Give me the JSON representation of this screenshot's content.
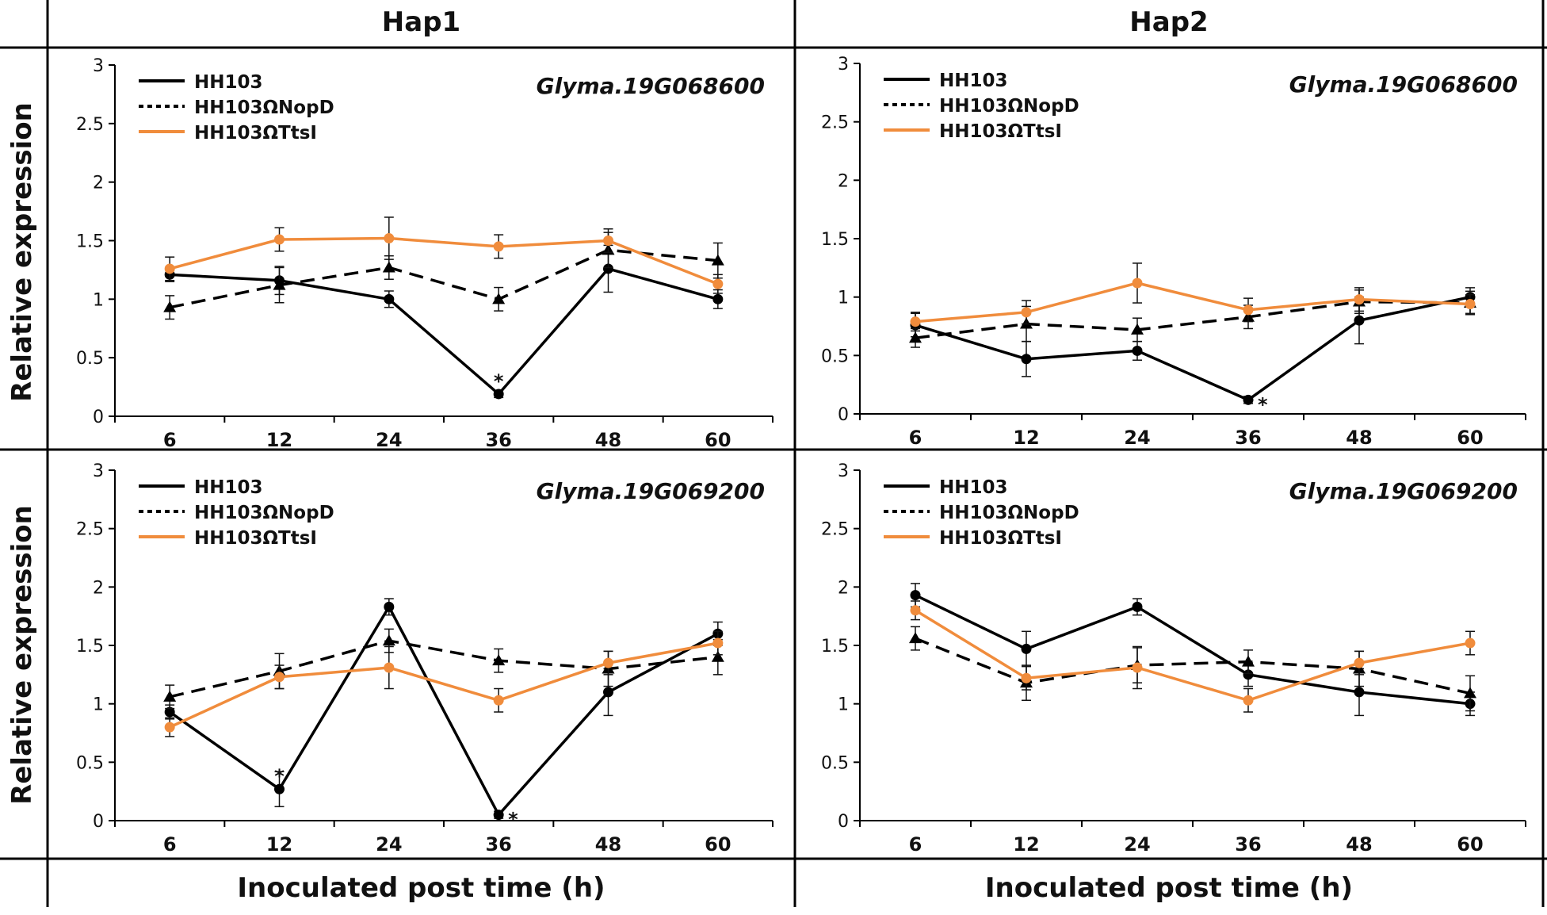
{
  "headers": {
    "left": "Hap1",
    "right": "Hap2"
  },
  "y_axis_label": "Relative expression",
  "x_axis_label": "Inoculated post time (h)",
  "colors": {
    "hh103": "#000000",
    "nopd": "#000000",
    "ttsi": "#f08c3c"
  },
  "chart_data": [
    {
      "type": "line",
      "panel": "Hap1 top",
      "title": "Glyma.19G068600",
      "categories": [
        "6",
        "12",
        "24",
        "36",
        "48",
        "60"
      ],
      "ylim": [
        0,
        3
      ],
      "yticks": [
        "0",
        "0.5",
        "1",
        "1.5",
        "2",
        "2.5",
        "3"
      ],
      "series": [
        {
          "name": "HH103",
          "values": [
            1.21,
            1.16,
            1.0,
            0.19,
            1.26,
            1.0
          ],
          "errors": [
            0.06,
            0.12,
            0.07,
            0.03,
            0.2,
            0.08
          ],
          "style": "solid",
          "marker": "circle"
        },
        {
          "name": "HH103ΩNopD",
          "values": [
            0.93,
            1.12,
            1.27,
            1.0,
            1.42,
            1.33
          ],
          "errors": [
            0.1,
            0.15,
            0.1,
            0.1,
            0.15,
            0.15
          ],
          "style": "dashed",
          "marker": "triangle"
        },
        {
          "name": "HH103ΩTtsI",
          "values": [
            1.26,
            1.51,
            1.52,
            1.45,
            1.5,
            1.13
          ],
          "errors": [
            0.1,
            0.1,
            0.18,
            0.1,
            0.1,
            0.08
          ],
          "style": "solid",
          "marker": "circle"
        }
      ],
      "annotations": [
        {
          "category": "36",
          "series": "HH103",
          "text": "*"
        }
      ]
    },
    {
      "type": "line",
      "panel": "Hap2 top",
      "title": "Glyma.19G068600",
      "categories": [
        "6",
        "12",
        "24",
        "36",
        "48",
        "60"
      ],
      "ylim": [
        0,
        3
      ],
      "yticks": [
        "0",
        "0.5",
        "1",
        "1.5",
        "2",
        "2.5",
        "3"
      ],
      "series": [
        {
          "name": "HH103",
          "values": [
            0.76,
            0.47,
            0.54,
            0.12,
            0.8,
            1.0
          ],
          "errors": [
            0.1,
            0.15,
            0.08,
            0.03,
            0.2,
            0.08
          ],
          "style": "solid",
          "marker": "circle"
        },
        {
          "name": "HH103ΩNopD",
          "values": [
            0.65,
            0.77,
            0.72,
            0.83,
            0.96,
            0.95
          ],
          "errors": [
            0.08,
            0.15,
            0.1,
            0.1,
            0.1,
            0.1
          ],
          "style": "dashed",
          "marker": "triangle"
        },
        {
          "name": "HH103ΩTtsI",
          "values": [
            0.79,
            0.87,
            1.12,
            0.89,
            0.98,
            0.94
          ],
          "errors": [
            0.08,
            0.1,
            0.17,
            0.1,
            0.1,
            0.08
          ],
          "style": "solid",
          "marker": "circle"
        }
      ],
      "annotations": [
        {
          "category": "36",
          "series": "HH103",
          "text": "*"
        }
      ]
    },
    {
      "type": "line",
      "panel": "Hap1 bottom",
      "title": "Glyma.19G069200",
      "categories": [
        "6",
        "12",
        "24",
        "36",
        "48",
        "60"
      ],
      "ylim": [
        0,
        3
      ],
      "yticks": [
        "0",
        "0.5",
        "1",
        "1.5",
        "2",
        "2.5",
        "3"
      ],
      "series": [
        {
          "name": "HH103",
          "values": [
            0.93,
            0.27,
            1.83,
            0.05,
            1.1,
            1.6
          ],
          "errors": [
            0.06,
            0.15,
            0.07,
            0.03,
            0.2,
            0.1
          ],
          "style": "solid",
          "marker": "circle"
        },
        {
          "name": "HH103ΩNopD",
          "values": [
            1.06,
            1.28,
            1.54,
            1.37,
            1.3,
            1.4
          ],
          "errors": [
            0.1,
            0.15,
            0.1,
            0.1,
            0.15,
            0.15
          ],
          "style": "dashed",
          "marker": "triangle"
        },
        {
          "name": "HH103ΩTtsI",
          "values": [
            0.8,
            1.23,
            1.31,
            1.03,
            1.35,
            1.52
          ],
          "errors": [
            0.08,
            0.1,
            0.18,
            0.1,
            0.1,
            0.1
          ],
          "style": "solid",
          "marker": "circle"
        }
      ],
      "annotations": [
        {
          "category": "12",
          "series": "HH103",
          "text": "*"
        },
        {
          "category": "36",
          "series": "HH103",
          "text": "*"
        }
      ]
    },
    {
      "type": "line",
      "panel": "Hap2 bottom",
      "title": "Glyma.19G069200",
      "categories": [
        "6",
        "12",
        "24",
        "36",
        "48",
        "60"
      ],
      "ylim": [
        0,
        3
      ],
      "yticks": [
        "0",
        "0.5",
        "1",
        "1.5",
        "2",
        "2.5",
        "3"
      ],
      "series": [
        {
          "name": "HH103",
          "values": [
            1.93,
            1.47,
            1.83,
            1.25,
            1.1,
            1.0
          ],
          "errors": [
            0.1,
            0.15,
            0.07,
            0.1,
            0.2,
            0.1
          ],
          "style": "solid",
          "marker": "circle"
        },
        {
          "name": "HH103ΩNopD",
          "values": [
            1.56,
            1.18,
            1.33,
            1.36,
            1.3,
            1.09
          ],
          "errors": [
            0.1,
            0.15,
            0.15,
            0.1,
            0.15,
            0.15
          ],
          "style": "dashed",
          "marker": "triangle"
        },
        {
          "name": "HH103ΩTtsI",
          "values": [
            1.8,
            1.22,
            1.31,
            1.03,
            1.35,
            1.52
          ],
          "errors": [
            0.08,
            0.1,
            0.18,
            0.1,
            0.1,
            0.1
          ],
          "style": "solid",
          "marker": "circle"
        }
      ],
      "annotations": []
    }
  ]
}
